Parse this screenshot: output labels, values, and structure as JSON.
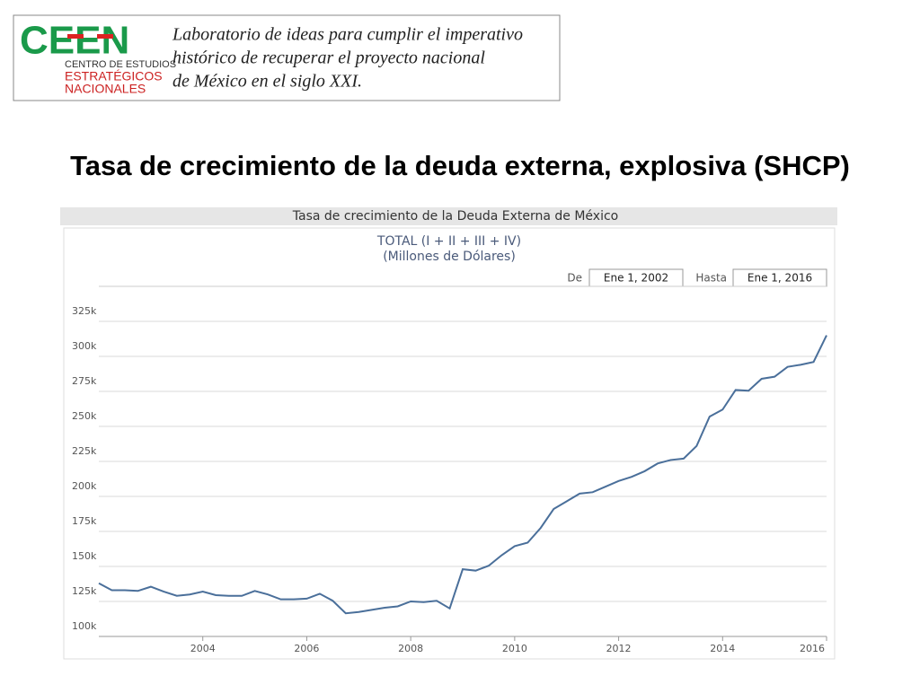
{
  "header": {
    "logo": "CEEN",
    "logo_subtitle": [
      "CENTRO DE ESTUDIOS",
      "ESTRATÉGICOS",
      "NACIONALES"
    ],
    "tagline": [
      "Laboratorio de ideas para cumplir el imperativo",
      "histórico de recuperar el proyecto nacional",
      "de México en el siglo XXI."
    ]
  },
  "title": "Tasa de crecimiento de la deuda externa, explosiva (SHCP)",
  "chart_data": {
    "type": "line",
    "title": "Tasa de crecimiento de la Deuda Externa de México",
    "subtitle": [
      "TOTAL (I + II + III + IV)",
      "(Millones de Dólares)"
    ],
    "range_from_label": "De",
    "range_from": "Ene 1, 2002",
    "range_to_label": "Hasta",
    "range_to": "Ene 1, 2016",
    "color": "#4a6f9a",
    "grid": true,
    "x": [
      2002,
      2002.25,
      2002.5,
      2002.75,
      2003,
      2003.25,
      2003.5,
      2003.75,
      2004,
      2004.25,
      2004.5,
      2004.75,
      2005,
      2005.25,
      2005.5,
      2005.75,
      2006,
      2006.25,
      2006.5,
      2006.75,
      2007,
      2007.25,
      2007.5,
      2007.75,
      2008,
      2008.25,
      2008.5,
      2008.75,
      2009,
      2009.25,
      2009.5,
      2009.75,
      2010,
      2010.25,
      2010.5,
      2010.75,
      2011,
      2011.25,
      2011.5,
      2011.75,
      2012,
      2012.25,
      2012.5,
      2012.75,
      2013,
      2013.25,
      2013.5,
      2013.75,
      2014,
      2014.25,
      2014.5,
      2014.75,
      2015,
      2015.25,
      2015.5,
      2015.75,
      2016
    ],
    "values": [
      138000,
      133000,
      133000,
      132500,
      135500,
      132000,
      129000,
      130000,
      132000,
      129500,
      129000,
      129000,
      132500,
      130000,
      126500,
      126500,
      127000,
      130500,
      125500,
      116500,
      117500,
      119000,
      120500,
      121500,
      125000,
      124500,
      125500,
      120000,
      148000,
      147000,
      150500,
      158000,
      164500,
      167000,
      177500,
      191000,
      196500,
      202000,
      203000,
      207000,
      211000,
      214000,
      218000,
      223500,
      226000,
      227000,
      236000,
      257000,
      262000,
      276000,
      275500,
      284000,
      285500,
      292500,
      294000,
      296000,
      315000
    ],
    "xlim": [
      2002,
      2016
    ],
    "xticks": [
      2004,
      2006,
      2008,
      2010,
      2012,
      2014,
      2016
    ],
    "ylim": [
      100000,
      350000
    ],
    "yticks": [
      {
        "value": 100000,
        "label": "100k"
      },
      {
        "value": 125000,
        "label": "125k"
      },
      {
        "value": 150000,
        "label": "150k"
      },
      {
        "value": 175000,
        "label": "175k"
      },
      {
        "value": 200000,
        "label": "200k"
      },
      {
        "value": 225000,
        "label": "225k"
      },
      {
        "value": 250000,
        "label": "250k"
      },
      {
        "value": 275000,
        "label": "275k"
      },
      {
        "value": 300000,
        "label": "300k"
      },
      {
        "value": 325000,
        "label": "325k"
      }
    ]
  }
}
